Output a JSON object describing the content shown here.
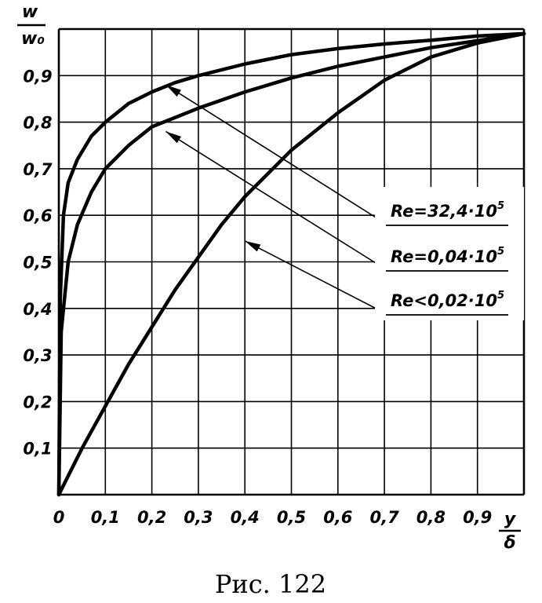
{
  "chart_data": {
    "type": "line",
    "ylabel": {
      "numerator": "w",
      "denominator": "w₀"
    },
    "xlabel": {
      "numerator": "y",
      "denominator": "δ"
    },
    "xlim": [
      0,
      1.0
    ],
    "ylim": [
      0,
      1.0
    ],
    "grid": true,
    "x_ticks": [
      {
        "value": 0,
        "label": "0"
      },
      {
        "value": 0.1,
        "label": "0,1"
      },
      {
        "value": 0.2,
        "label": "0,2"
      },
      {
        "value": 0.3,
        "label": "0,3"
      },
      {
        "value": 0.4,
        "label": "0,4"
      },
      {
        "value": 0.5,
        "label": "0,5"
      },
      {
        "value": 0.6,
        "label": "0,6"
      },
      {
        "value": 0.7,
        "label": "0,7"
      },
      {
        "value": 0.8,
        "label": "0,8"
      },
      {
        "value": 0.9,
        "label": "0,9"
      }
    ],
    "y_ticks": [
      {
        "value": 0.1,
        "label": "0,1"
      },
      {
        "value": 0.2,
        "label": "0,2"
      },
      {
        "value": 0.3,
        "label": "0,3"
      },
      {
        "value": 0.4,
        "label": "0,4"
      },
      {
        "value": 0.5,
        "label": "0,5"
      },
      {
        "value": 0.6,
        "label": "0,6"
      },
      {
        "value": 0.7,
        "label": "0,7"
      },
      {
        "value": 0.8,
        "label": "0,8"
      },
      {
        "value": 0.9,
        "label": "0,9"
      }
    ],
    "series": [
      {
        "name": "Re=32,4·10⁵",
        "label_parts": {
          "main": "Re=32,4·10",
          "sup": "5"
        },
        "x": [
          0,
          0.003,
          0.01,
          0.02,
          0.04,
          0.07,
          0.1,
          0.15,
          0.2,
          0.25,
          0.3,
          0.4,
          0.5,
          0.6,
          0.7,
          0.8,
          0.9,
          1.0
        ],
        "y": [
          0,
          0.42,
          0.6,
          0.67,
          0.72,
          0.77,
          0.8,
          0.84,
          0.865,
          0.885,
          0.9,
          0.925,
          0.945,
          0.958,
          0.968,
          0.976,
          0.985,
          0.99
        ],
        "pointer": {
          "x": 0.23,
          "y": 0.88
        }
      },
      {
        "name": "Re=0,04·10⁵",
        "label_parts": {
          "main": "Re=0,04·10",
          "sup": "5"
        },
        "x": [
          0,
          0.005,
          0.02,
          0.04,
          0.07,
          0.1,
          0.15,
          0.2,
          0.25,
          0.3,
          0.4,
          0.5,
          0.6,
          0.7,
          0.8,
          0.9,
          1.0
        ],
        "y": [
          0,
          0.35,
          0.5,
          0.58,
          0.65,
          0.7,
          0.75,
          0.79,
          0.81,
          0.83,
          0.865,
          0.895,
          0.92,
          0.94,
          0.96,
          0.975,
          0.99
        ],
        "pointer": {
          "x": 0.23,
          "y": 0.78
        }
      },
      {
        "name": "Re<0,02·10⁵",
        "label_parts": {
          "main": "Re<0,02·10",
          "sup": "5"
        },
        "x": [
          0,
          0.05,
          0.1,
          0.15,
          0.2,
          0.25,
          0.3,
          0.35,
          0.4,
          0.45,
          0.5,
          0.6,
          0.7,
          0.8,
          0.9,
          1.0
        ],
        "y": [
          0,
          0.1,
          0.19,
          0.28,
          0.36,
          0.44,
          0.51,
          0.58,
          0.64,
          0.69,
          0.74,
          0.82,
          0.89,
          0.94,
          0.97,
          0.99
        ],
        "pointer": {
          "x": 0.4,
          "y": 0.545
        }
      }
    ]
  },
  "caption": "Рис. 122"
}
